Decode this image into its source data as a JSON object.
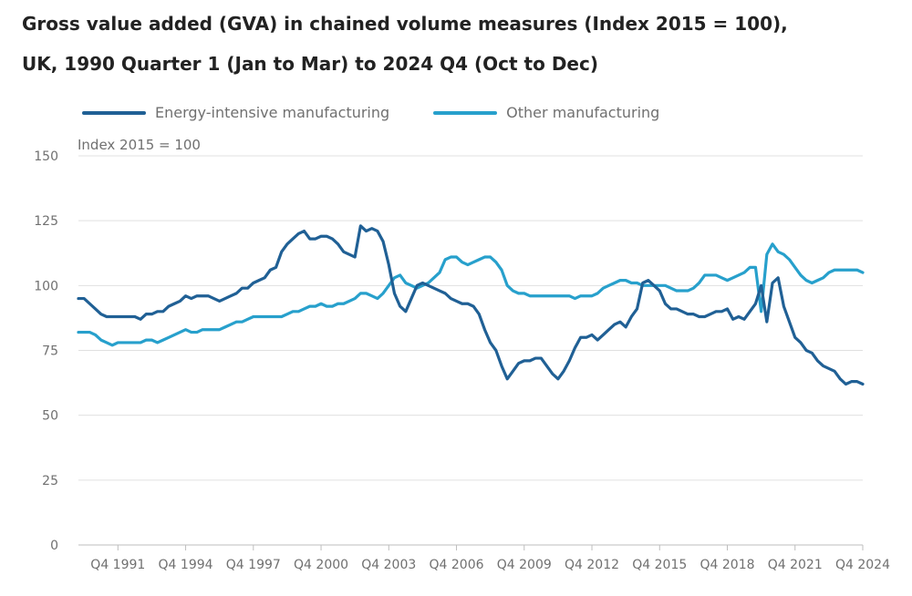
{
  "title_line1": "Gross value added (GVA) in chained volume measures (Index 2015 = 100),",
  "title_line2": "UK, 1990 Quarter 1 (Jan to Mar) to 2024 Q4 (Oct to Dec)",
  "unit_label": "Index 2015 = 100",
  "colors": {
    "energy": "#206095",
    "other": "#27a0cc",
    "grid": "#e0e0e0",
    "axis": "#bebebe"
  },
  "chart_data": {
    "type": "line",
    "title": "Gross value added (GVA) in chained volume measures (Index 2015 = 100), UK, 1990 Quarter 1 (Jan to Mar) to 2024 Q4 (Oct to Dec)",
    "ylabel": "Index 2015 = 100",
    "xlabel": "",
    "ylim": [
      0,
      150
    ],
    "yticks": [
      0,
      25,
      50,
      75,
      100,
      125,
      150
    ],
    "x_start": "1990 Q1",
    "x_end": "2024 Q4",
    "xticks": [
      {
        "label": "Q4 1991",
        "index": 7
      },
      {
        "label": "Q4 1994",
        "index": 19
      },
      {
        "label": "Q4 1997",
        "index": 31
      },
      {
        "label": "Q4 2000",
        "index": 43
      },
      {
        "label": "Q4 2003",
        "index": 55
      },
      {
        "label": "Q4 2006",
        "index": 67
      },
      {
        "label": "Q4 2009",
        "index": 79
      },
      {
        "label": "Q4 2012",
        "index": 91
      },
      {
        "label": "Q4 2015",
        "index": 103
      },
      {
        "label": "Q4 2018",
        "index": 115
      },
      {
        "label": "Q4 2021",
        "index": 127
      },
      {
        "label": "Q4 2024",
        "index": 139
      }
    ],
    "legend_position": "top-left",
    "series": [
      {
        "name": "Energy-intensive manufacturing",
        "values": [
          95,
          95,
          93,
          91,
          89,
          88,
          88,
          88,
          88,
          88,
          88,
          87,
          89,
          89,
          90,
          90,
          92,
          93,
          94,
          96,
          95,
          96,
          96,
          96,
          95,
          94,
          95,
          96,
          97,
          99,
          99,
          101,
          102,
          103,
          106,
          107,
          113,
          116,
          118,
          120,
          121,
          118,
          118,
          119,
          119,
          118,
          116,
          113,
          112,
          111,
          123,
          121,
          122,
          121,
          117,
          108,
          97,
          92,
          90,
          95,
          100,
          101,
          100,
          99,
          98,
          97,
          95,
          94,
          93,
          93,
          92,
          89,
          83,
          78,
          75,
          69,
          64,
          67,
          70,
          71,
          71,
          72,
          72,
          69,
          66,
          64,
          67,
          71,
          76,
          80,
          80,
          81,
          79,
          81,
          83,
          85,
          86,
          84,
          88,
          91,
          101,
          102,
          100,
          98,
          93,
          91,
          91,
          90,
          89,
          89,
          88,
          88,
          89,
          90,
          90,
          91,
          87,
          88,
          87,
          90,
          93,
          100,
          86,
          101,
          103,
          92,
          86,
          80,
          78,
          75,
          74,
          71,
          69,
          68,
          67,
          64,
          62,
          63,
          63,
          62
        ]
      },
      {
        "name": "Other manufacturing",
        "values": [
          82,
          82,
          82,
          81,
          79,
          78,
          77,
          78,
          78,
          78,
          78,
          78,
          79,
          79,
          78,
          79,
          80,
          81,
          82,
          83,
          82,
          82,
          83,
          83,
          83,
          83,
          84,
          85,
          86,
          86,
          87,
          88,
          88,
          88,
          88,
          88,
          88,
          89,
          90,
          90,
          91,
          92,
          92,
          93,
          92,
          92,
          93,
          93,
          94,
          95,
          97,
          97,
          96,
          95,
          97,
          100,
          103,
          104,
          101,
          100,
          99,
          100,
          101,
          103,
          105,
          110,
          111,
          111,
          109,
          108,
          109,
          110,
          111,
          111,
          109,
          106,
          100,
          98,
          97,
          97,
          96,
          96,
          96,
          96,
          96,
          96,
          96,
          96,
          95,
          96,
          96,
          96,
          97,
          99,
          100,
          101,
          102,
          102,
          101,
          101,
          100,
          100,
          100,
          100,
          100,
          99,
          98,
          98,
          98,
          99,
          101,
          104,
          104,
          104,
          103,
          102,
          103,
          104,
          105,
          107,
          107,
          90,
          112,
          116,
          113,
          112,
          110,
          107,
          104,
          102,
          101,
          102,
          103,
          105,
          106,
          106,
          106,
          106,
          106,
          105
        ]
      }
    ]
  }
}
